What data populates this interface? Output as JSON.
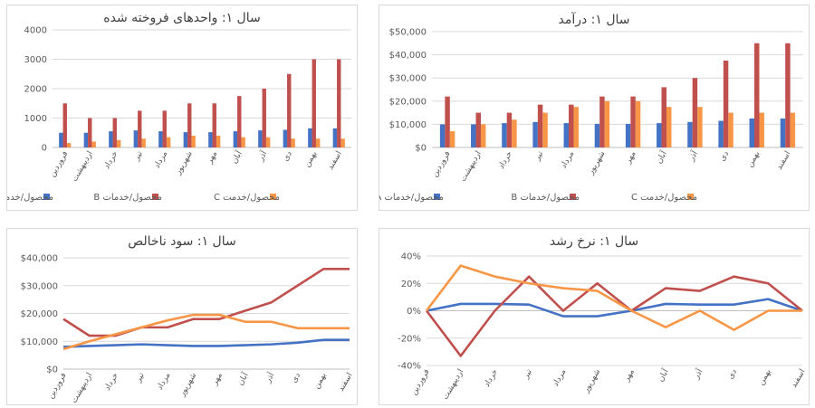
{
  "series_names": [
    "محصول/خدمات A",
    "محصول/خدمات B",
    "محصول/خدمت C"
  ],
  "colors": {
    "A": "#4472C4",
    "B": "#C0504D",
    "C": "#F79646"
  },
  "chart_data": [
    {
      "id": "units",
      "type": "bar",
      "title": "سال ۱: واحدهای فروخته شده",
      "categories": [
        "فروردین",
        "اردیبهشت",
        "خرداد",
        "تیر",
        "مرداد",
        "شهریور",
        "مهر",
        "آبان",
        "آذر",
        "دی",
        "بهمن",
        "اسفند"
      ],
      "ylim": [
        0,
        4000
      ],
      "yticks": [
        "0",
        "1000",
        "2000",
        "3000",
        "4000"
      ],
      "series": [
        {
          "name": "محصول/خدمات A",
          "values": [
            500,
            500,
            550,
            580,
            550,
            520,
            520,
            550,
            580,
            600,
            650,
            650
          ]
        },
        {
          "name": "محصول/خدمات B",
          "values": [
            1500,
            1000,
            1000,
            1250,
            1250,
            1500,
            1500,
            1750,
            2000,
            2500,
            3000,
            3000
          ]
        },
        {
          "name": "محصول/خدمت C",
          "values": [
            150,
            200,
            250,
            300,
            350,
            400,
            400,
            350,
            350,
            300,
            300,
            300
          ]
        }
      ]
    },
    {
      "id": "revenue",
      "type": "bar",
      "title": "سال ۱: درآمد",
      "categories": [
        "فروردین",
        "اردیبهشت",
        "خرداد",
        "تیر",
        "مرداد",
        "شهریور",
        "مهر",
        "آبان",
        "آذر",
        "دی",
        "بهمن",
        "اسفند"
      ],
      "ylim": [
        0,
        50000
      ],
      "yticks": [
        "$0",
        "$10,000",
        "$20,000",
        "$30,000",
        "$40,000",
        "$50,000"
      ],
      "series": [
        {
          "name": "محصول/خدمات A",
          "values": [
            10000,
            10000,
            10500,
            11000,
            10500,
            10200,
            10200,
            10500,
            11000,
            11500,
            12500,
            12500
          ]
        },
        {
          "name": "محصول/خدمات B",
          "values": [
            22000,
            15000,
            15000,
            18500,
            18500,
            22000,
            22000,
            26000,
            30000,
            37500,
            45000,
            45000
          ]
        },
        {
          "name": "محصول/خدمت C",
          "values": [
            7000,
            10000,
            12000,
            15000,
            17500,
            20000,
            20000,
            17500,
            17500,
            15000,
            15000,
            15000
          ]
        }
      ]
    },
    {
      "id": "profit",
      "type": "line",
      "title": "سال ۱: سود ناخالص",
      "categories": [
        "فروردین",
        "اردیبهشت",
        "خرداد",
        "تیر",
        "مرداد",
        "شهریور",
        "مهر",
        "آبان",
        "آذر",
        "دی",
        "بهمن",
        "اسفند"
      ],
      "ylim": [
        0,
        40000
      ],
      "yticks": [
        "$0",
        "$10,000",
        "$20,000",
        "$30,000",
        "$40,000"
      ],
      "series": [
        {
          "name": "محصول/خدمات A",
          "values": [
            8000,
            8300,
            8600,
            8900,
            8600,
            8300,
            8300,
            8600,
            8900,
            9500,
            10500,
            10500
          ]
        },
        {
          "name": "محصول/خدمات B",
          "values": [
            18000,
            12000,
            12000,
            15000,
            15000,
            18000,
            18000,
            21000,
            24000,
            30000,
            36000,
            36000
          ]
        },
        {
          "name": "محصول/خدمت C",
          "values": [
            7200,
            10000,
            12500,
            15000,
            17500,
            19500,
            19500,
            17000,
            17000,
            14700,
            14700,
            14700
          ]
        }
      ]
    },
    {
      "id": "growth",
      "type": "line",
      "title": "سال ۱: نرخ رشد",
      "categories": [
        "فروردین",
        "اردیبهشت",
        "خرداد",
        "تیر",
        "مرداد",
        "شهریور",
        "مهر",
        "آبان",
        "آذر",
        "دی",
        "بهمن",
        "اسفند"
      ],
      "ylim": [
        -40,
        40
      ],
      "yticks": [
        "-40%",
        "-20%",
        "0%",
        "20%",
        "40%"
      ],
      "series": [
        {
          "name": "محصول/خدمات A",
          "values": [
            0,
            5,
            5,
            4.5,
            -4,
            -4,
            0,
            5,
            4.5,
            4.5,
            8.5,
            0
          ]
        },
        {
          "name": "محصول/خدمات B",
          "values": [
            0,
            -33,
            0,
            25,
            0,
            20,
            0,
            16.5,
            14.5,
            25,
            20,
            0
          ]
        },
        {
          "name": "محصول/خدمت C",
          "values": [
            0,
            33,
            25,
            20,
            16.5,
            14.5,
            0,
            -12,
            0,
            -14,
            0,
            0
          ]
        }
      ]
    }
  ]
}
